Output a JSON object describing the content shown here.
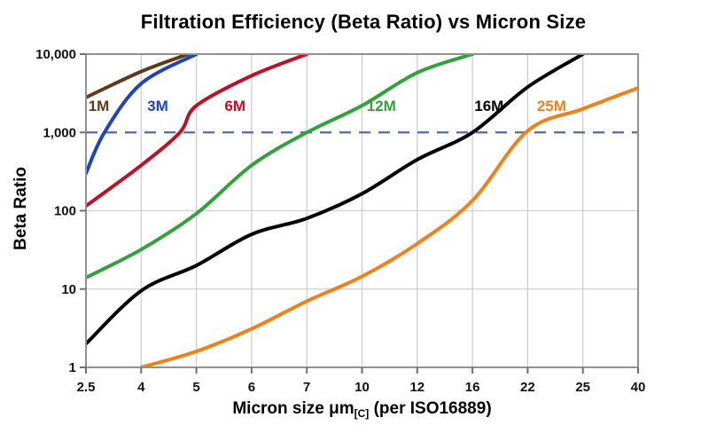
{
  "chart_data": {
    "type": "line",
    "title": "Filtration Efficiency (Beta Ratio) vs Micron Size",
    "ylabel": "Beta Ratio",
    "xlabel": {
      "main": "Micron size μm",
      "sub": "[C]",
      "rest": " (per ISO16889)"
    },
    "x_scale": "categorical-equal-spacing",
    "y_scale": "log",
    "x_values": [
      2.5,
      4,
      5,
      6,
      7,
      10,
      12,
      16,
      22,
      25,
      40
    ],
    "x_ticks": [
      "2.5",
      "4",
      "5",
      "6",
      "7",
      "10",
      "12",
      "16",
      "22",
      "25",
      "40"
    ],
    "y_tick_values": [
      1,
      10,
      100,
      1000,
      10000
    ],
    "y_ticks": [
      "1",
      "10",
      "100",
      "1,000",
      "10,000"
    ],
    "ylim": [
      1,
      10000
    ],
    "grid": true,
    "legend_position": "inline-labels",
    "reference_line": {
      "value": 1000,
      "style": "dashed",
      "color": "#4a6f9f"
    },
    "grid_color": "#cfcfcf",
    "border_color": "#919191",
    "tick_color": "#6f6f6f",
    "series": [
      {
        "name": "1M",
        "color": "#5e3a18",
        "label_anchor": {
          "micron": 2.85,
          "beta": 2200
        },
        "points": [
          [
            2.5,
            2800
          ],
          [
            4,
            6000
          ],
          [
            4.85,
            10000
          ]
        ]
      },
      {
        "name": "3M",
        "color": "#1e43c0",
        "label_anchor": {
          "micron": 4.3,
          "beta": 2200
        },
        "points": [
          [
            2.5,
            300
          ],
          [
            3,
            1000
          ],
          [
            4,
            4200
          ],
          [
            5,
            10000
          ]
        ]
      },
      {
        "name": "6M",
        "color": "#c00e27",
        "label_anchor": {
          "micron": 5.7,
          "beta": 2200
        },
        "points": [
          [
            2.5,
            115
          ],
          [
            4,
            380
          ],
          [
            4.7,
            1000
          ],
          [
            5,
            2200
          ],
          [
            6,
            5300
          ],
          [
            7,
            10000
          ]
        ]
      },
      {
        "name": "12M",
        "color": "#2fa339",
        "label_anchor": {
          "micron": 10.7,
          "beta": 2200
        },
        "points": [
          [
            2.5,
            14
          ],
          [
            4,
            32
          ],
          [
            5,
            92
          ],
          [
            6,
            380
          ],
          [
            7,
            1000
          ],
          [
            10,
            2200
          ],
          [
            12,
            5800
          ],
          [
            16,
            10000
          ]
        ]
      },
      {
        "name": "16M",
        "color": "#000000",
        "label_anchor": {
          "micron": 17.8,
          "beta": 2200
        },
        "points": [
          [
            2.5,
            2
          ],
          [
            4,
            9.5
          ],
          [
            5,
            20
          ],
          [
            6,
            50
          ],
          [
            7,
            80
          ],
          [
            10,
            165
          ],
          [
            12,
            450
          ],
          [
            16,
            1000
          ],
          [
            22,
            3800
          ],
          [
            25,
            10000
          ]
        ]
      },
      {
        "name": "25M",
        "color": "#f08119",
        "label_anchor": {
          "micron": 23.3,
          "beta": 2200
        },
        "points": [
          [
            4,
            1
          ],
          [
            5,
            1.6
          ],
          [
            6,
            3.1
          ],
          [
            7,
            7
          ],
          [
            10,
            14.5
          ],
          [
            12,
            38
          ],
          [
            16,
            135
          ],
          [
            22,
            1050
          ],
          [
            25,
            2000
          ],
          [
            40,
            3700
          ]
        ]
      }
    ]
  }
}
